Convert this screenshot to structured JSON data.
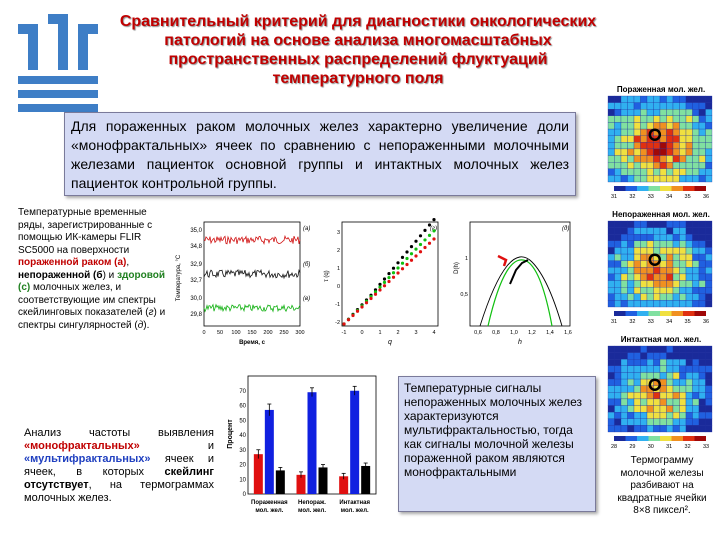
{
  "title": {
    "lines": [
      "Сравнительный критерий для диагностики онкологических",
      "патологий на основе анализа многомасштабных",
      "пространственных распределений флуктуаций",
      "температурного поля"
    ]
  },
  "main_statement": "Для пораженных раком молочных желез характерно увеличение доли «монофрактальных» ячеек по сравнению с непораженными молочными железами пациенток основной группы и интактных молочных желез пациенток контрольной группы.",
  "description": {
    "part1": "Температурные временные ряды, зарегистрированные с помощью ИК-камеры FLIR SC5000 на поверхности ",
    "affected": "пораженной раком (",
    "a": "а",
    "close1": ")",
    "comma": ", ",
    "unaffected": "непораженной",
    "b_open": " (",
    "b": "б",
    "b_close": ") и ",
    "healthy": "здоровой (",
    "c": "с",
    "close3": ")",
    "part2": " молочных желез, и соответствующие им спектры скейлинговых показателей (",
    "g": "г",
    "part3": ") и спектры сингулярностей (",
    "d": "д",
    "part4": ")."
  },
  "analysis": {
    "p1": "Анализ частоты выявления ",
    "mono": "«монофрактальных»",
    "p2": " и ",
    "multi": "«мультифрактальных»",
    "p3": " ячеек и ячеек, в которых ",
    "noscale": "скейлинг отсутствует",
    "p4": ", на термограммах молочных желез."
  },
  "temp_box": "Температурные сигналы непораженных молочных желез характеризуются мультифрактальностью, тогда как сигналы молочной железы пораженной раком являются монофрактальными",
  "thermo_caption": "Термограмму молочной железы разбивают на квадратные ячейки 8×8 пиксел².",
  "heatmaps": [
    {
      "label": "Пораженная мол. жел.",
      "ticks": [
        "31",
        "32",
        "33",
        "34",
        "35",
        "36"
      ]
    },
    {
      "label": "Непораженная мол. жел.",
      "ticks": [
        "31",
        "32",
        "33",
        "34",
        "35",
        "36"
      ]
    },
    {
      "label": "Интактная мол. жел.",
      "ticks": [
        "28",
        "29",
        "30",
        "31",
        "32",
        "33"
      ]
    }
  ],
  "timeseries": {
    "ylabel": "Температура, °C",
    "xlabel": "Время, с",
    "yticks": [
      "35,0",
      "34,8",
      "32,9",
      "32,7",
      "30,0",
      "29,8"
    ],
    "xticks": [
      "0",
      "50",
      "100",
      "150",
      "200",
      "250",
      "300"
    ],
    "panel_labels": [
      "(a)",
      "(б)",
      "(в)"
    ]
  },
  "tau_chart": {
    "ylabel": "τ (q)",
    "xlabel": "q",
    "xticks": [
      "-1",
      "0",
      "1",
      "2",
      "3",
      "4"
    ],
    "yticks": [
      "3",
      "2",
      "1",
      "0",
      "-1",
      "-2"
    ],
    "panel_label": "(г)"
  },
  "sing_chart": {
    "ylabel": "D(h)",
    "xlabel": "h",
    "xticks": [
      "0,6",
      "0,8",
      "1,0",
      "1,2",
      "1,4",
      "1,6"
    ],
    "yticks": [
      "1",
      "0,5"
    ],
    "panel_label": "(д)"
  },
  "colors": {
    "title": "#c00000",
    "affected": "#d01010",
    "unaffected": "#101010",
    "healthy": "#10b010",
    "bar_red": "#e01010",
    "bar_blue": "#1020e0",
    "bar_black": "#000000"
  },
  "chart_data": {
    "type": "bar",
    "categories": [
      "Пораженная мол. жел.",
      "Непораж. мол. жел.",
      "Интактная мол. жел."
    ],
    "series": [
      {
        "values": [
          27,
          13,
          12
        ],
        "errors": [
          3,
          2,
          2
        ],
        "color": "#e01010"
      },
      {
        "values": [
          57,
          69,
          70
        ],
        "errors": [
          4,
          3,
          3
        ],
        "color": "#1020e0"
      },
      {
        "values": [
          16,
          18,
          19
        ],
        "errors": [
          2,
          2,
          2
        ],
        "color": "#000000"
      }
    ],
    "ylabel": "Процент",
    "ylim": [
      0,
      80
    ],
    "yticks": [
      "0",
      "10",
      "20",
      "30",
      "40",
      "50",
      "60",
      "70"
    ]
  }
}
